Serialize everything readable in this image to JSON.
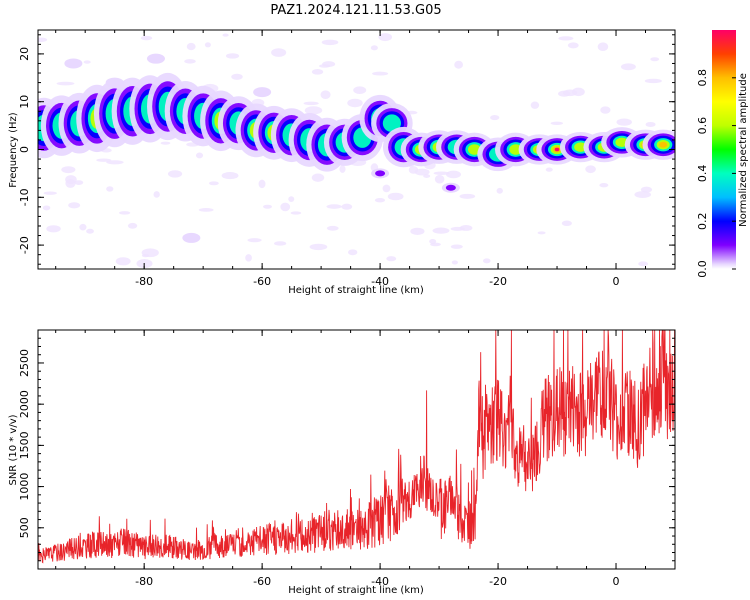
{
  "title": "PAZ1.2024.121.11.53.G05",
  "colors": {
    "snr_line": "#e8242a",
    "colormap": [
      "#ffffff",
      "#7f00ff",
      "#0000ff",
      "#00bfff",
      "#00ffbf",
      "#00ff00",
      "#bfff00",
      "#ffff00",
      "#ffbf00",
      "#ff4000",
      "#ff0066"
    ]
  },
  "chart_data": [
    {
      "type": "heatmap",
      "name": "spectrogram",
      "xlabel": "Height of straight line (km)",
      "ylabel": "Frequency (Hz)",
      "xlim": [
        -98,
        10
      ],
      "ylim": [
        -25,
        25
      ],
      "xticks": [
        -80,
        -60,
        -40,
        -20,
        0
      ],
      "xtick_labels": [
        "-80",
        "-60",
        "-40",
        "-20",
        "0"
      ],
      "yticks": [
        -20,
        -10,
        0,
        10,
        20
      ],
      "ytick_labels": [
        "-20",
        "-10",
        "0",
        "10",
        "20"
      ],
      "colorbar": {
        "label": "Normalized spectral amplitude",
        "range": [
          0,
          1
        ],
        "ticks": [
          0.0,
          0.2,
          0.4,
          0.6,
          0.8
        ],
        "tick_labels": [
          "0.0",
          "0.2",
          "0.4",
          "0.6",
          "0.8"
        ]
      },
      "ridge": [
        {
          "x": -97,
          "f": 4.5,
          "a": 0.45,
          "w": 1.8
        },
        {
          "x": -94,
          "f": 5.0,
          "a": 0.5,
          "w": 1.8
        },
        {
          "x": -91,
          "f": 5.5,
          "a": 0.45,
          "w": 1.8
        },
        {
          "x": -88,
          "f": 6.5,
          "a": 0.55,
          "w": 2.0
        },
        {
          "x": -85,
          "f": 7.5,
          "a": 0.5,
          "w": 2.0
        },
        {
          "x": -82,
          "f": 8.0,
          "a": 0.5,
          "w": 2.0
        },
        {
          "x": -79,
          "f": 8.5,
          "a": 0.45,
          "w": 2.0
        },
        {
          "x": -76,
          "f": 9.0,
          "a": 0.5,
          "w": 2.0
        },
        {
          "x": -73,
          "f": 8.0,
          "a": 0.45,
          "w": 1.8
        },
        {
          "x": -70,
          "f": 7.0,
          "a": 0.5,
          "w": 1.8
        },
        {
          "x": -67,
          "f": 6.0,
          "a": 0.55,
          "w": 1.8
        },
        {
          "x": -64,
          "f": 5.5,
          "a": 0.5,
          "w": 1.6
        },
        {
          "x": -61,
          "f": 4.0,
          "a": 0.55,
          "w": 1.6
        },
        {
          "x": -58,
          "f": 3.5,
          "a": 0.55,
          "w": 1.6
        },
        {
          "x": -55,
          "f": 3.0,
          "a": 0.5,
          "w": 1.6
        },
        {
          "x": -52,
          "f": 2.0,
          "a": 0.5,
          "w": 1.6
        },
        {
          "x": -49,
          "f": 1.0,
          "a": 0.45,
          "w": 1.6
        },
        {
          "x": -46,
          "f": 1.5,
          "a": 0.5,
          "w": 1.4
        },
        {
          "x": -43,
          "f": 2.5,
          "a": 0.4,
          "w": 1.4
        },
        {
          "x": -40,
          "f": 6.5,
          "a": 0.45,
          "w": 1.4
        },
        {
          "x": -38,
          "f": 5.5,
          "a": 0.35,
          "w": 1.2
        },
        {
          "x": -36,
          "f": 0.5,
          "a": 0.4,
          "w": 1.2
        },
        {
          "x": -33,
          "f": 0.0,
          "a": 0.6,
          "w": 1.0
        },
        {
          "x": -30,
          "f": 0.5,
          "a": 0.6,
          "w": 1.0
        },
        {
          "x": -27,
          "f": 0.5,
          "a": 0.5,
          "w": 1.0
        },
        {
          "x": -24,
          "f": 0.0,
          "a": 0.55,
          "w": 1.0
        },
        {
          "x": -20,
          "f": -1.0,
          "a": 0.5,
          "w": 1.0
        },
        {
          "x": -17,
          "f": 0.0,
          "a": 0.6,
          "w": 1.0
        },
        {
          "x": -13,
          "f": 0.0,
          "a": 0.85,
          "w": 0.9
        },
        {
          "x": -10,
          "f": 0.0,
          "a": 0.95,
          "w": 0.9
        },
        {
          "x": -6,
          "f": 0.5,
          "a": 0.7,
          "w": 0.9
        },
        {
          "x": -2,
          "f": 0.5,
          "a": 0.6,
          "w": 0.9
        },
        {
          "x": 1,
          "f": 1.5,
          "a": 0.7,
          "w": 0.9
        },
        {
          "x": 5,
          "f": 1.0,
          "a": 0.8,
          "w": 0.9
        },
        {
          "x": 8,
          "f": 1.0,
          "a": 0.85,
          "w": 0.9
        }
      ],
      "blobs": [
        {
          "x": -28,
          "f": -8,
          "a": 0.45
        },
        {
          "x": -40,
          "f": -5,
          "a": 0.35
        },
        {
          "x": -72,
          "f": -18.5,
          "a": 0.15
        },
        {
          "x": -78,
          "f": 19,
          "a": 0.1
        },
        {
          "x": -92,
          "f": 18,
          "a": 0.1
        },
        {
          "x": -85,
          "f": 14,
          "a": 0.12
        },
        {
          "x": -60,
          "f": 12,
          "a": 0.1
        }
      ]
    },
    {
      "type": "line",
      "name": "snr",
      "xlabel": "Height of straight line (km)",
      "ylabel": "SNR (10 * v/v)",
      "xlim": [
        -98,
        10
      ],
      "ylim": [
        0,
        2900
      ],
      "xticks": [
        -80,
        -60,
        -40,
        -20,
        0
      ],
      "xtick_labels": [
        "-80",
        "-60",
        "-40",
        "-20",
        "0"
      ],
      "yticks": [
        500,
        1000,
        1500,
        2000,
        2500
      ],
      "ytick_labels": [
        "500",
        "1000",
        "1500",
        "2000",
        "2500"
      ],
      "x": [
        -98,
        -95,
        -92,
        -90,
        -88,
        -86,
        -84,
        -82,
        -80,
        -78,
        -76,
        -74,
        -72,
        -70,
        -68,
        -66,
        -64,
        -62,
        -60,
        -58,
        -56,
        -54,
        -52,
        -50,
        -48,
        -46,
        -44,
        -42,
        -40,
        -38,
        -36,
        -34,
        -33,
        -32,
        -31,
        -30,
        -29,
        -28,
        -27,
        -26,
        -25,
        -24,
        -23,
        -22.5,
        -22,
        -21,
        -20,
        -19,
        -18,
        -17,
        -16,
        -15,
        -14,
        -12,
        -10,
        -8,
        -6,
        -4,
        -2,
        -1,
        0,
        2,
        4,
        6,
        7,
        8,
        9,
        10
      ],
      "y": [
        150,
        200,
        250,
        280,
        300,
        280,
        320,
        300,
        260,
        300,
        280,
        260,
        220,
        240,
        280,
        300,
        320,
        340,
        360,
        380,
        400,
        420,
        380,
        450,
        480,
        500,
        460,
        520,
        600,
        700,
        800,
        900,
        1100,
        1000,
        850,
        800,
        780,
        900,
        700,
        600,
        500,
        600,
        2100,
        1500,
        1800,
        1700,
        1900,
        1600,
        2000,
        1300,
        1600,
        1200,
        1300,
        1800,
        1900,
        1950,
        1900,
        2000,
        2300,
        2200,
        1800,
        1900,
        1700,
        2300,
        2000,
        2600,
        2100,
        2000
      ]
    }
  ]
}
